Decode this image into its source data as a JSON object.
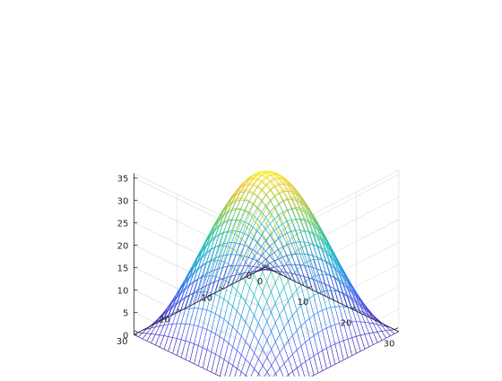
{
  "chart_data": {
    "type": "surface",
    "title": "",
    "xlabel": "",
    "ylabel": "",
    "zlabel": "",
    "grid": true,
    "colormap": "parula",
    "mesh_style": "mesh",
    "x_range": [
      0,
      31
    ],
    "y_range": [
      0,
      31
    ],
    "z_range": [
      0,
      36
    ],
    "grid_points": 32,
    "peak_value": 35.6,
    "peak_at": [
      15.5,
      15.5
    ],
    "surface_formula": "z = 36 * sin(pi*x/31) * sin(pi*y/31) (approximate)",
    "x_ticks": [
      "0",
      "10",
      "20",
      "30"
    ],
    "y_ticks": [
      "0",
      "10",
      "20",
      "30"
    ],
    "z_ticks": [
      "0",
      "5",
      "10",
      "15",
      "20",
      "25",
      "30",
      "35"
    ],
    "colors": {
      "low": "#3e26a8",
      "mid": "#25b7c6",
      "high": "#f9fb15",
      "grid": "#dcdcdc",
      "axis": "#262626"
    }
  }
}
